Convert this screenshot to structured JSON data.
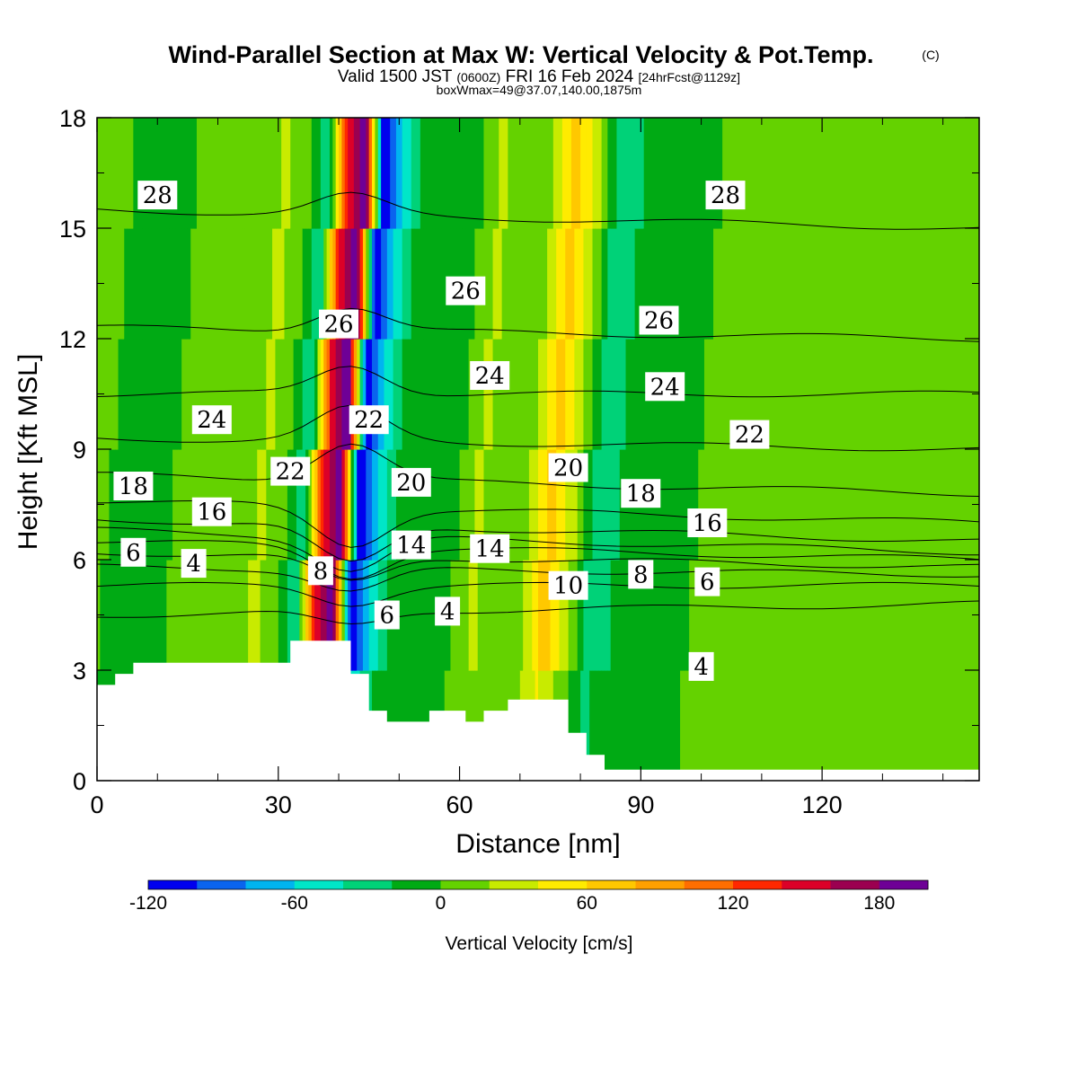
{
  "chart_data": {
    "type": "heatmap",
    "title": "Wind-Parallel Section at Max W: Vertical Velocity & Pot.Temp.",
    "title_mark": "(C)",
    "subtitle_parts": [
      "Valid 1500 JST",
      "(0600Z)",
      "FRI 16 Feb 2024",
      "[24hrFcst@1129z]"
    ],
    "subtitle2": "boxWmax=49@37.07,140.00,1875m",
    "xlabel": "Distance [nm]",
    "ylabel": "Height [Kft MSL]",
    "xlim": [
      0,
      146
    ],
    "ylim": [
      0,
      18
    ],
    "xticks": [
      0,
      30,
      60,
      90,
      120
    ],
    "yticks": [
      0,
      3,
      6,
      9,
      12,
      15,
      18
    ],
    "grid": false,
    "colorbar": {
      "title": "Vertical Velocity [cm/s]",
      "min": -120,
      "max": 200,
      "step": 20,
      "tick_values": [
        -120,
        -60,
        0,
        60,
        120,
        180
      ],
      "tick_labels": [
        "-120",
        "-60",
        "0",
        "60",
        "120",
        "180"
      ],
      "colors": [
        "#0000ee",
        "#0a64ee",
        "#00b4f0",
        "#00e6c8",
        "#00d278",
        "#00aa14",
        "#64d200",
        "#c8eb00",
        "#ffeb00",
        "#ffc800",
        "#ffa000",
        "#ff6e00",
        "#ff2800",
        "#dc0028",
        "#9b0050",
        "#6e0096"
      ]
    },
    "w_field_columns": [
      {
        "x": 0,
        "w": 10
      },
      {
        "x": 8,
        "w": -20
      },
      {
        "x": 16,
        "w": 10
      },
      {
        "x": 24,
        "w": 0
      },
      {
        "x": 28,
        "w": 25
      },
      {
        "x": 32,
        "w": 0
      },
      {
        "x": 35,
        "w": -40
      },
      {
        "x": 38,
        "w": 140
      },
      {
        "x": 41,
        "w": 200
      },
      {
        "x": 44,
        "w": -120
      },
      {
        "x": 47,
        "w": -60
      },
      {
        "x": 50,
        "w": -20
      },
      {
        "x": 55,
        "w": 0
      },
      {
        "x": 60,
        "w": -5
      },
      {
        "x": 64,
        "w": 25
      },
      {
        "x": 68,
        "w": 0
      },
      {
        "x": 72,
        "w": 15
      },
      {
        "x": 76,
        "w": 70
      },
      {
        "x": 80,
        "w": 20
      },
      {
        "x": 84,
        "w": -40
      },
      {
        "x": 90,
        "w": 0
      },
      {
        "x": 96,
        "w": -5
      },
      {
        "x": 100,
        "w": 0
      },
      {
        "x": 110,
        "w": 0
      },
      {
        "x": 120,
        "w": 10
      },
      {
        "x": 146,
        "w": 10
      }
    ],
    "theta_contours": [
      {
        "theta": 4,
        "z_west": 4.5,
        "z_east": 4.8
      },
      {
        "theta": 6,
        "z_west": 5.3,
        "z_east": 5.3
      },
      {
        "theta": 8,
        "z_west": 5.8,
        "z_east": 5.6
      },
      {
        "theta": 10,
        "z_west": 6.2,
        "z_east": 5.8
      },
      {
        "theta": 12,
        "z_west": 6.5,
        "z_east": 6.0
      },
      {
        "theta": 14,
        "z_west": 6.8,
        "z_east": 6.2
      },
      {
        "theta": 16,
        "z_west": 7.1,
        "z_east": 6.5
      },
      {
        "theta": 18,
        "z_west": 7.6,
        "z_east": 7.0
      },
      {
        "theta": 20,
        "z_west": 8.3,
        "z_east": 7.8
      },
      {
        "theta": 22,
        "z_west": 9.3,
        "z_east": 9.0
      },
      {
        "theta": 24,
        "z_west": 10.5,
        "z_east": 10.5
      },
      {
        "theta": 26,
        "z_west": 12.3,
        "z_east": 12.0
      },
      {
        "theta": 28,
        "z_west": 15.5,
        "z_east": 15.0
      }
    ],
    "contour_labels": [
      {
        "text": "28",
        "x": 10,
        "y": 15.9
      },
      {
        "text": "28",
        "x": 104,
        "y": 15.9
      },
      {
        "text": "26",
        "x": 40,
        "y": 12.4
      },
      {
        "text": "26",
        "x": 61,
        "y": 13.3
      },
      {
        "text": "26",
        "x": 93,
        "y": 12.5
      },
      {
        "text": "24",
        "x": 19,
        "y": 9.8
      },
      {
        "text": "24",
        "x": 65,
        "y": 11.0
      },
      {
        "text": "24",
        "x": 94,
        "y": 10.7
      },
      {
        "text": "22",
        "x": 32,
        "y": 8.4
      },
      {
        "text": "22",
        "x": 45,
        "y": 9.8
      },
      {
        "text": "22",
        "x": 108,
        "y": 9.4
      },
      {
        "text": "20",
        "x": 52,
        "y": 8.1
      },
      {
        "text": "20",
        "x": 78,
        "y": 8.5
      },
      {
        "text": "18",
        "x": 6,
        "y": 8.0
      },
      {
        "text": "18",
        "x": 90,
        "y": 7.8
      },
      {
        "text": "16",
        "x": 19,
        "y": 7.3
      },
      {
        "text": "16",
        "x": 101,
        "y": 7.0
      },
      {
        "text": "14",
        "x": 52,
        "y": 6.4
      },
      {
        "text": "14",
        "x": 65,
        "y": 6.3
      },
      {
        "text": "10",
        "x": 78,
        "y": 5.3
      },
      {
        "text": "8",
        "x": 37,
        "y": 5.7
      },
      {
        "text": "8",
        "x": 90,
        "y": 5.6
      },
      {
        "text": "6",
        "x": 6,
        "y": 6.2
      },
      {
        "text": "6",
        "x": 101,
        "y": 5.4
      },
      {
        "text": "6",
        "x": 48,
        "y": 4.5
      },
      {
        "text": "4",
        "x": 16,
        "y": 5.9
      },
      {
        "text": "4",
        "x": 58,
        "y": 4.6
      },
      {
        "text": "4",
        "x": 100,
        "y": 3.1
      }
    ],
    "terrain": {
      "x": [
        0,
        3,
        3,
        6,
        6,
        32,
        32,
        42,
        42,
        45,
        45,
        48,
        48,
        55,
        55,
        61,
        61,
        64,
        64,
        68,
        68,
        78,
        78,
        81,
        81,
        84,
        84,
        146
      ],
      "z": [
        2.6,
        2.6,
        2.9,
        2.9,
        3.2,
        3.2,
        3.8,
        3.8,
        2.9,
        2.9,
        1.9,
        1.9,
        1.6,
        1.6,
        1.9,
        1.9,
        1.6,
        1.6,
        1.9,
        1.9,
        2.2,
        2.2,
        1.3,
        1.3,
        0.7,
        0.7,
        0.3,
        0.3
      ]
    }
  }
}
